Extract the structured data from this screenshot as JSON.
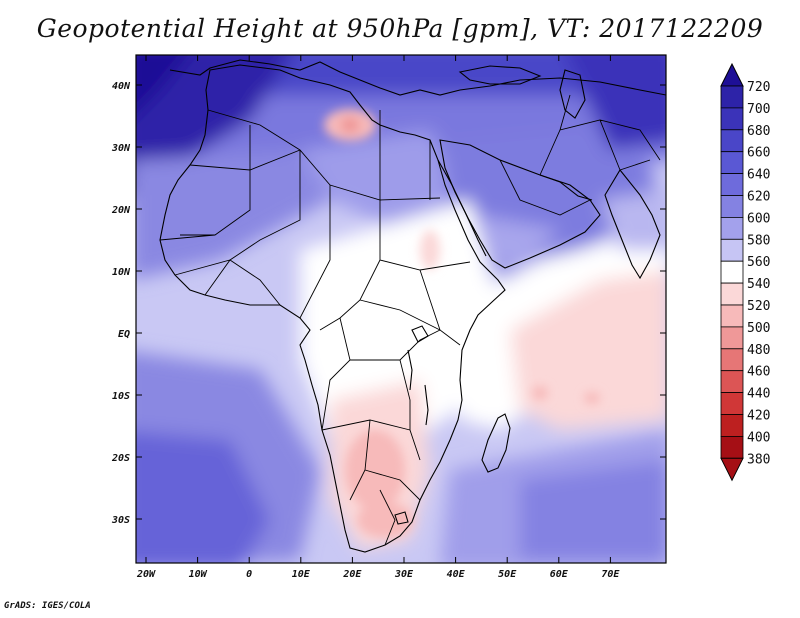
{
  "title": "Geopotential Height at 950hPa [gpm], VT: 2017122209",
  "credit": "GrADS: IGES/COLA",
  "map": {
    "lat_ticks": [
      "40N",
      "30N",
      "20N",
      "10N",
      "EQ",
      "10S",
      "20S",
      "30S"
    ],
    "lon_ticks": [
      "20W",
      "10W",
      "0",
      "10E",
      "20E",
      "30E",
      "40E",
      "50E",
      "60E",
      "70E"
    ]
  },
  "colorbar": {
    "levels": [
      "720",
      "700",
      "680",
      "660",
      "640",
      "620",
      "600",
      "580",
      "560",
      "540",
      "520",
      "500",
      "480",
      "460",
      "440",
      "420",
      "400",
      "380"
    ],
    "colors": [
      "#1e0f96",
      "#2d23a8",
      "#3b33b9",
      "#4a46c8",
      "#5a58d4",
      "#6e6bdc",
      "#8482e2",
      "#a3a1ec",
      "#c6c5f4",
      "#ffffff",
      "#fbd8d8",
      "#f7baba",
      "#ef9898",
      "#e67676",
      "#dc5555",
      "#d03737",
      "#bd2020",
      "#a50f15"
    ]
  }
}
